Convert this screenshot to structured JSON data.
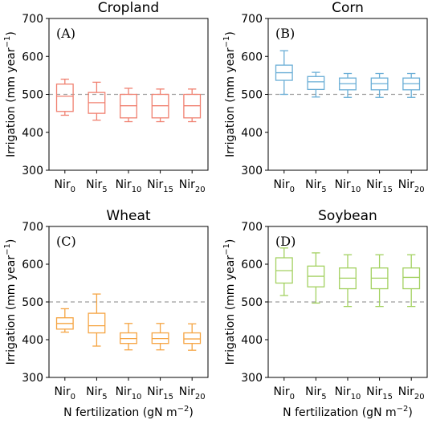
{
  "chart_data": [
    {
      "type": "box",
      "panel_label": "(A)",
      "title": "Cropland",
      "ylabel": "Irrigation (mm year",
      "ylabel_sup": "−1",
      "ylabel_close": ")",
      "ylim": [
        300,
        700
      ],
      "yticks": [
        300,
        400,
        500,
        600,
        700
      ],
      "ref_line": 500,
      "color": "#f08070",
      "categories": [
        {
          "base": "Nir",
          "sub": "0"
        },
        {
          "base": "Nir",
          "sub": "5"
        },
        {
          "base": "Nir",
          "sub": "10"
        },
        {
          "base": "Nir",
          "sub": "15"
        },
        {
          "base": "Nir",
          "sub": "20"
        }
      ],
      "boxes": [
        {
          "whislo": 445,
          "q1": 455,
          "med": 495,
          "q3": 527,
          "whishi": 540
        },
        {
          "whislo": 432,
          "q1": 450,
          "med": 478,
          "q3": 505,
          "whishi": 532
        },
        {
          "whislo": 428,
          "q1": 438,
          "med": 470,
          "q3": 500,
          "whishi": 516
        },
        {
          "whislo": 428,
          "q1": 438,
          "med": 470,
          "q3": 500,
          "whishi": 514
        },
        {
          "whislo": 428,
          "q1": 438,
          "med": 470,
          "q3": 500,
          "whishi": 514
        }
      ]
    },
    {
      "type": "box",
      "panel_label": "(B)",
      "title": "Corn",
      "ylabel": "Irrigation (mm year",
      "ylabel_sup": "−1",
      "ylabel_close": ")",
      "ylim": [
        300,
        700
      ],
      "yticks": [
        300,
        400,
        500,
        600,
        700
      ],
      "ref_line": 500,
      "color": "#6aaed6",
      "categories": [
        {
          "base": "Nir",
          "sub": "0"
        },
        {
          "base": "Nir",
          "sub": "5"
        },
        {
          "base": "Nir",
          "sub": "10"
        },
        {
          "base": "Nir",
          "sub": "15"
        },
        {
          "base": "Nir",
          "sub": "20"
        }
      ],
      "boxes": [
        {
          "whislo": 500,
          "q1": 537,
          "med": 557,
          "q3": 577,
          "whishi": 615
        },
        {
          "whislo": 493,
          "q1": 513,
          "med": 533,
          "q3": 547,
          "whishi": 558
        },
        {
          "whislo": 492,
          "q1": 512,
          "med": 528,
          "q3": 543,
          "whishi": 555
        },
        {
          "whislo": 492,
          "q1": 512,
          "med": 528,
          "q3": 543,
          "whishi": 555
        },
        {
          "whislo": 492,
          "q1": 512,
          "med": 528,
          "q3": 543,
          "whishi": 555
        }
      ]
    },
    {
      "type": "box",
      "panel_label": "(C)",
      "title": "Wheat",
      "ylabel": "Irrigation (mm year",
      "ylabel_sup": "−1",
      "ylabel_close": ")",
      "xlabel": "N fertilization (gN m",
      "xlabel_sup": "−2",
      "xlabel_close": ")",
      "ylim": [
        300,
        700
      ],
      "yticks": [
        300,
        400,
        500,
        600,
        700
      ],
      "ref_line": 500,
      "color": "#f5a442",
      "categories": [
        {
          "base": "Nir",
          "sub": "0"
        },
        {
          "base": "Nir",
          "sub": "5"
        },
        {
          "base": "Nir",
          "sub": "10"
        },
        {
          "base": "Nir",
          "sub": "15"
        },
        {
          "base": "Nir",
          "sub": "20"
        }
      ],
      "boxes": [
        {
          "whislo": 420,
          "q1": 428,
          "med": 443,
          "q3": 458,
          "whishi": 482
        },
        {
          "whislo": 383,
          "q1": 418,
          "med": 437,
          "q3": 470,
          "whishi": 521
        },
        {
          "whislo": 373,
          "q1": 390,
          "med": 403,
          "q3": 418,
          "whishi": 443
        },
        {
          "whislo": 373,
          "q1": 390,
          "med": 403,
          "q3": 418,
          "whishi": 443
        },
        {
          "whislo": 372,
          "q1": 390,
          "med": 402,
          "q3": 418,
          "whishi": 442
        }
      ]
    },
    {
      "type": "box",
      "panel_label": "(D)",
      "title": "Soybean",
      "ylabel": "Irrigation (mm year",
      "ylabel_sup": "−1",
      "ylabel_close": ")",
      "xlabel": "N fertilization (gN m",
      "xlabel_sup": "−2",
      "xlabel_close": ")",
      "ylim": [
        300,
        700
      ],
      "yticks": [
        300,
        400,
        500,
        600,
        700
      ],
      "ref_line": 500,
      "color": "#a3d160",
      "categories": [
        {
          "base": "Nir",
          "sub": "0"
        },
        {
          "base": "Nir",
          "sub": "5"
        },
        {
          "base": "Nir",
          "sub": "10"
        },
        {
          "base": "Nir",
          "sub": "15"
        },
        {
          "base": "Nir",
          "sub": "20"
        }
      ],
      "boxes": [
        {
          "whislo": 517,
          "q1": 550,
          "med": 583,
          "q3": 617,
          "whishi": 643
        },
        {
          "whislo": 497,
          "q1": 540,
          "med": 568,
          "q3": 595,
          "whishi": 630
        },
        {
          "whislo": 488,
          "q1": 535,
          "med": 563,
          "q3": 590,
          "whishi": 625
        },
        {
          "whislo": 488,
          "q1": 535,
          "med": 563,
          "q3": 590,
          "whishi": 625
        },
        {
          "whislo": 488,
          "q1": 535,
          "med": 565,
          "q3": 590,
          "whishi": 625
        }
      ]
    }
  ]
}
